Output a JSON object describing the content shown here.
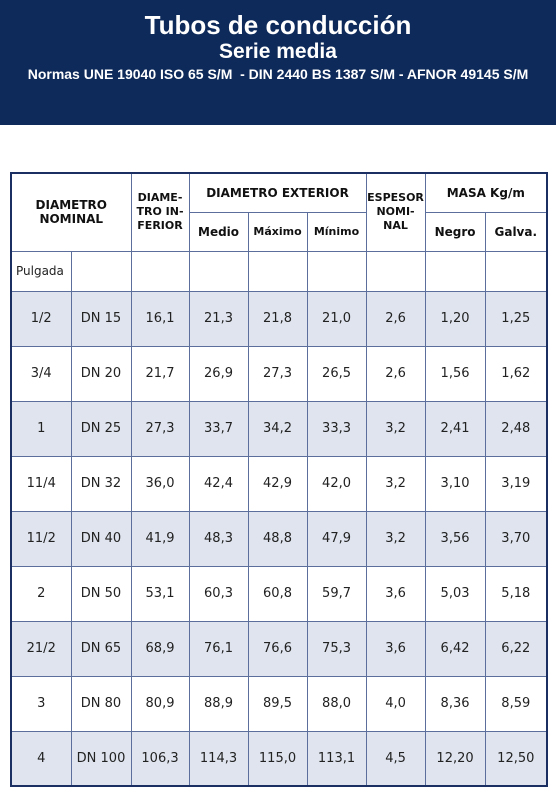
{
  "header": {
    "title": "Tubos de conducción",
    "subtitle": "Serie media",
    "norms": "Normas UNE 19040 ISO 65 S/M  - DIN 2440 BS 1387 S/M - AFNOR 49145 S/M"
  },
  "table": {
    "headers": {
      "diametro_nominal": [
        "DIAMETRO",
        "NOMINAL"
      ],
      "diametro_inferior": [
        "DIAME-",
        "TRO IN-",
        "FERIOR"
      ],
      "diametro_exterior": "DIAMETRO EXTERIOR",
      "exterior_columns": [
        "Medio",
        "Máximo",
        "Mínimo"
      ],
      "espesor_nominal": [
        "ESPESOR",
        "NOMI-",
        "NAL"
      ],
      "masa": "MASA Kg/m",
      "masa_columns": [
        "Negro",
        "Galva."
      ],
      "pulgada": "Pulgada"
    },
    "rows": [
      [
        "1/2",
        "DN 15",
        "16,1",
        "21,3",
        "21,8",
        "21,0",
        "2,6",
        "1,20",
        "1,25"
      ],
      [
        "3/4",
        "DN 20",
        "21,7",
        "26,9",
        "27,3",
        "26,5",
        "2,6",
        "1,56",
        "1,62"
      ],
      [
        "1",
        "DN 25",
        "27,3",
        "33,7",
        "34,2",
        "33,3",
        "3,2",
        "2,41",
        "2,48"
      ],
      [
        "11/4",
        "DN 32",
        "36,0",
        "42,4",
        "42,9",
        "42,0",
        "3,2",
        "3,10",
        "3,19"
      ],
      [
        "11/2",
        "DN 40",
        "41,9",
        "48,3",
        "48,8",
        "47,9",
        "3,2",
        "3,56",
        "3,70"
      ],
      [
        "2",
        "DN 50",
        "53,1",
        "60,3",
        "60,8",
        "59,7",
        "3,6",
        "5,03",
        "5,18"
      ],
      [
        "21/2",
        "DN 65",
        "68,9",
        "76,1",
        "76,6",
        "75,3",
        "3,6",
        "6,42",
        "6,22"
      ],
      [
        "3",
        "DN 80",
        "80,9",
        "88,9",
        "89,5",
        "88,0",
        "4,0",
        "8,36",
        "8,59"
      ],
      [
        "4",
        "DN 100",
        "106,3",
        "114,3",
        "115,0",
        "113,1",
        "4,5",
        "12,20",
        "12,50"
      ]
    ]
  }
}
